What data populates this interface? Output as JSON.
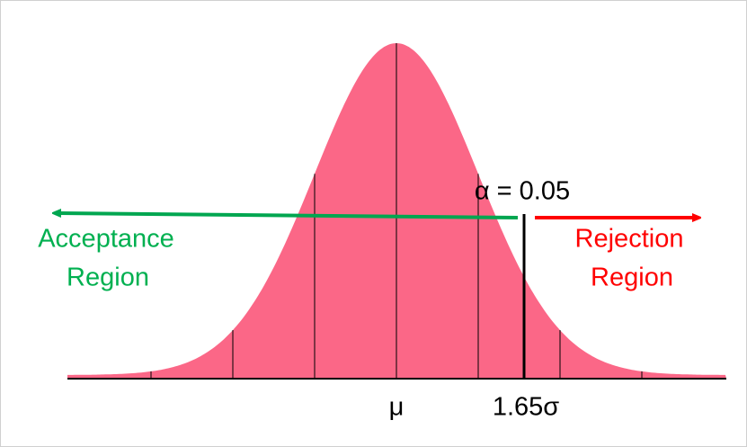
{
  "annotations": {
    "alpha": "α = 0.05",
    "acceptance_region": [
      "Acceptance",
      "Region"
    ],
    "rejection_region": [
      "Rejection",
      "Region"
    ]
  },
  "axis_labels": {
    "mean": "μ",
    "critical": "1.65σ"
  }
}
